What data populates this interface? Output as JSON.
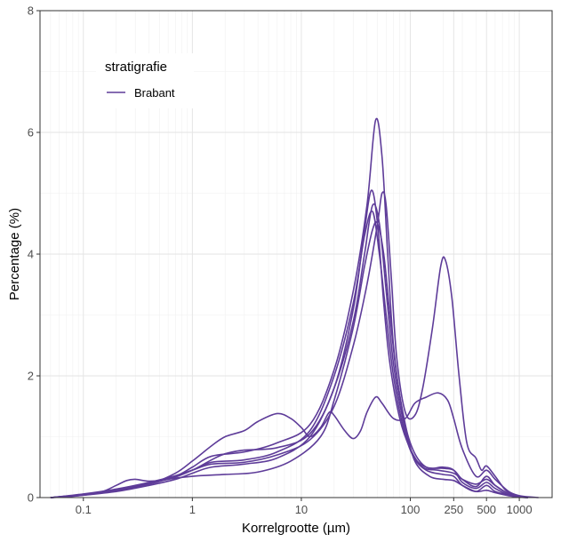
{
  "chart_data": {
    "type": "line",
    "xlabel": "Korrelgrootte (µm)",
    "ylabel": "Percentage (%)",
    "x_scale": "log10",
    "xlim": [
      0.04,
      2000
    ],
    "ylim": [
      0,
      8
    ],
    "x_ticks": [
      {
        "value": 0.1,
        "label": "0.1"
      },
      {
        "value": 1,
        "label": "1"
      },
      {
        "value": 10,
        "label": "10"
      },
      {
        "value": 100,
        "label": "100"
      },
      {
        "value": 250,
        "label": "250"
      },
      {
        "value": 500,
        "label": "500"
      },
      {
        "value": 1000,
        "label": "1000"
      }
    ],
    "y_ticks": [
      {
        "value": 0,
        "label": "0"
      },
      {
        "value": 2,
        "label": "2"
      },
      {
        "value": 4,
        "label": "4"
      },
      {
        "value": 6,
        "label": "6"
      },
      {
        "value": 8,
        "label": "8"
      }
    ],
    "grid": true,
    "legend": {
      "title": "stratigrafie",
      "position": "top-left",
      "entries": [
        {
          "label": "Brabant",
          "color": "#5e3c99"
        }
      ]
    },
    "line_color": "#5e3c99",
    "series": [
      {
        "name": "Brabant",
        "points": [
          [
            0.05,
            0
          ],
          [
            0.08,
            0.02
          ],
          [
            0.15,
            0.08
          ],
          [
            0.25,
            0.15
          ],
          [
            0.5,
            0.28
          ],
          [
            1,
            0.35
          ],
          [
            2,
            0.38
          ],
          [
            4,
            0.42
          ],
          [
            8,
            0.6
          ],
          [
            15,
            1.0
          ],
          [
            20,
            1.6
          ],
          [
            30,
            2.8
          ],
          [
            38,
            3.8
          ],
          [
            45,
            4.4
          ],
          [
            50,
            4.5
          ],
          [
            57,
            4.0
          ],
          [
            65,
            3.0
          ],
          [
            75,
            2.0
          ],
          [
            90,
            1.2
          ],
          [
            110,
            0.6
          ],
          [
            150,
            0.35
          ],
          [
            200,
            0.3
          ],
          [
            250,
            0.28
          ],
          [
            300,
            0.2
          ],
          [
            400,
            0.1
          ],
          [
            500,
            0.12
          ],
          [
            600,
            0.08
          ],
          [
            800,
            0.03
          ],
          [
            1000,
            0.01
          ],
          [
            1200,
            0
          ]
        ]
      },
      {
        "name": "Brabant",
        "points": [
          [
            0.05,
            0
          ],
          [
            0.1,
            0.04
          ],
          [
            0.2,
            0.1
          ],
          [
            0.4,
            0.2
          ],
          [
            0.7,
            0.3
          ],
          [
            1,
            0.4
          ],
          [
            1.5,
            0.5
          ],
          [
            3,
            0.55
          ],
          [
            6,
            0.65
          ],
          [
            12,
            1.0
          ],
          [
            20,
            1.8
          ],
          [
            30,
            2.9
          ],
          [
            38,
            4.0
          ],
          [
            45,
            4.8
          ],
          [
            52,
            4.5
          ],
          [
            60,
            3.4
          ],
          [
            70,
            2.2
          ],
          [
            85,
            1.3
          ],
          [
            105,
            0.7
          ],
          [
            140,
            0.45
          ],
          [
            200,
            0.38
          ],
          [
            250,
            0.35
          ],
          [
            300,
            0.2
          ],
          [
            400,
            0.1
          ],
          [
            500,
            0.2
          ],
          [
            600,
            0.1
          ],
          [
            800,
            0.04
          ],
          [
            1000,
            0.01
          ],
          [
            1200,
            0
          ]
        ]
      },
      {
        "name": "Brabant",
        "points": [
          [
            0.05,
            0
          ],
          [
            0.1,
            0.05
          ],
          [
            0.2,
            0.13
          ],
          [
            0.4,
            0.24
          ],
          [
            0.7,
            0.35
          ],
          [
            1,
            0.45
          ],
          [
            1.5,
            0.58
          ],
          [
            3,
            0.62
          ],
          [
            6,
            0.75
          ],
          [
            12,
            1.1
          ],
          [
            20,
            2.0
          ],
          [
            30,
            3.2
          ],
          [
            38,
            4.3
          ],
          [
            45,
            4.7
          ],
          [
            52,
            4.0
          ],
          [
            60,
            3.0
          ],
          [
            70,
            2.0
          ],
          [
            85,
            1.2
          ],
          [
            105,
            0.7
          ],
          [
            140,
            0.5
          ],
          [
            200,
            0.48
          ],
          [
            250,
            0.45
          ],
          [
            300,
            0.3
          ],
          [
            400,
            0.18
          ],
          [
            500,
            0.35
          ],
          [
            600,
            0.2
          ],
          [
            800,
            0.06
          ],
          [
            1000,
            0.02
          ],
          [
            1200,
            0
          ]
        ]
      },
      {
        "name": "Brabant",
        "points": [
          [
            0.05,
            0
          ],
          [
            0.1,
            0.04
          ],
          [
            0.15,
            0.1
          ],
          [
            0.2,
            0.2
          ],
          [
            0.25,
            0.28
          ],
          [
            0.3,
            0.3
          ],
          [
            0.4,
            0.27
          ],
          [
            0.6,
            0.3
          ],
          [
            1,
            0.45
          ],
          [
            1.5,
            0.62
          ],
          [
            2,
            0.72
          ],
          [
            3,
            0.78
          ],
          [
            6,
            0.82
          ],
          [
            12,
            1.05
          ],
          [
            20,
            1.8
          ],
          [
            30,
            3.1
          ],
          [
            38,
            4.4
          ],
          [
            44,
            5.05
          ],
          [
            50,
            4.5
          ],
          [
            57,
            3.2
          ],
          [
            65,
            2.2
          ],
          [
            80,
            1.3
          ],
          [
            100,
            0.8
          ],
          [
            130,
            0.5
          ],
          [
            180,
            0.45
          ],
          [
            250,
            0.4
          ],
          [
            300,
            0.3
          ],
          [
            400,
            0.22
          ],
          [
            500,
            0.3
          ],
          [
            600,
            0.2
          ],
          [
            800,
            0.06
          ],
          [
            1000,
            0.02
          ],
          [
            1200,
            0
          ]
        ]
      },
      {
        "name": "Brabant",
        "points": [
          [
            0.05,
            0
          ],
          [
            0.1,
            0.05
          ],
          [
            0.2,
            0.12
          ],
          [
            0.4,
            0.22
          ],
          [
            0.7,
            0.35
          ],
          [
            1,
            0.5
          ],
          [
            1.5,
            0.68
          ],
          [
            3,
            0.75
          ],
          [
            6,
            0.9
          ],
          [
            12,
            1.2
          ],
          [
            20,
            2.1
          ],
          [
            30,
            3.4
          ],
          [
            40,
            4.8
          ],
          [
            48,
            6.2
          ],
          [
            55,
            5.6
          ],
          [
            62,
            4.0
          ],
          [
            70,
            2.5
          ],
          [
            85,
            1.4
          ],
          [
            105,
            0.8
          ],
          [
            140,
            0.5
          ],
          [
            200,
            0.5
          ],
          [
            250,
            0.45
          ],
          [
            300,
            0.25
          ],
          [
            400,
            0.15
          ],
          [
            500,
            0.25
          ],
          [
            600,
            0.15
          ],
          [
            800,
            0.04
          ],
          [
            1000,
            0.01
          ],
          [
            1200,
            0
          ]
        ]
      },
      {
        "name": "Brabant",
        "points": [
          [
            0.05,
            0
          ],
          [
            0.1,
            0.05
          ],
          [
            0.2,
            0.12
          ],
          [
            0.4,
            0.22
          ],
          [
            0.7,
            0.4
          ],
          [
            1,
            0.6
          ],
          [
            1.5,
            0.85
          ],
          [
            2,
            1.0
          ],
          [
            3,
            1.1
          ],
          [
            4,
            1.25
          ],
          [
            6,
            1.38
          ],
          [
            8,
            1.3
          ],
          [
            10,
            1.15
          ],
          [
            12,
            1.0
          ],
          [
            15,
            1.15
          ],
          [
            18,
            1.4
          ],
          [
            20,
            1.35
          ],
          [
            25,
            1.1
          ],
          [
            30,
            0.97
          ],
          [
            35,
            1.1
          ],
          [
            40,
            1.4
          ],
          [
            48,
            1.65
          ],
          [
            55,
            1.55
          ],
          [
            70,
            1.3
          ],
          [
            90,
            1.3
          ],
          [
            110,
            1.55
          ],
          [
            140,
            1.65
          ],
          [
            180,
            1.72
          ],
          [
            220,
            1.6
          ],
          [
            250,
            1.3
          ],
          [
            300,
            0.8
          ],
          [
            400,
            0.35
          ],
          [
            500,
            0.45
          ],
          [
            600,
            0.3
          ],
          [
            800,
            0.1
          ],
          [
            1000,
            0.03
          ],
          [
            1200,
            0
          ]
        ]
      },
      {
        "name": "Brabant",
        "points": [
          [
            0.05,
            0
          ],
          [
            0.1,
            0.06
          ],
          [
            0.2,
            0.14
          ],
          [
            0.4,
            0.25
          ],
          [
            0.7,
            0.36
          ],
          [
            1,
            0.45
          ],
          [
            1.5,
            0.55
          ],
          [
            3,
            0.58
          ],
          [
            6,
            0.7
          ],
          [
            12,
            0.95
          ],
          [
            20,
            1.5
          ],
          [
            30,
            2.5
          ],
          [
            40,
            3.5
          ],
          [
            50,
            4.5
          ],
          [
            55,
            5.0
          ],
          [
            60,
            4.8
          ],
          [
            67,
            3.6
          ],
          [
            75,
            2.3
          ],
          [
            90,
            1.4
          ],
          [
            110,
            1.35
          ],
          [
            130,
            1.8
          ],
          [
            160,
            2.8
          ],
          [
            190,
            3.8
          ],
          [
            210,
            3.9
          ],
          [
            240,
            3.3
          ],
          [
            280,
            2.0
          ],
          [
            330,
            0.9
          ],
          [
            400,
            0.65
          ],
          [
            450,
            0.45
          ],
          [
            500,
            0.52
          ],
          [
            600,
            0.35
          ],
          [
            750,
            0.12
          ],
          [
            900,
            0.05
          ],
          [
            1100,
            0.02
          ],
          [
            1500,
            0
          ]
        ]
      }
    ]
  }
}
